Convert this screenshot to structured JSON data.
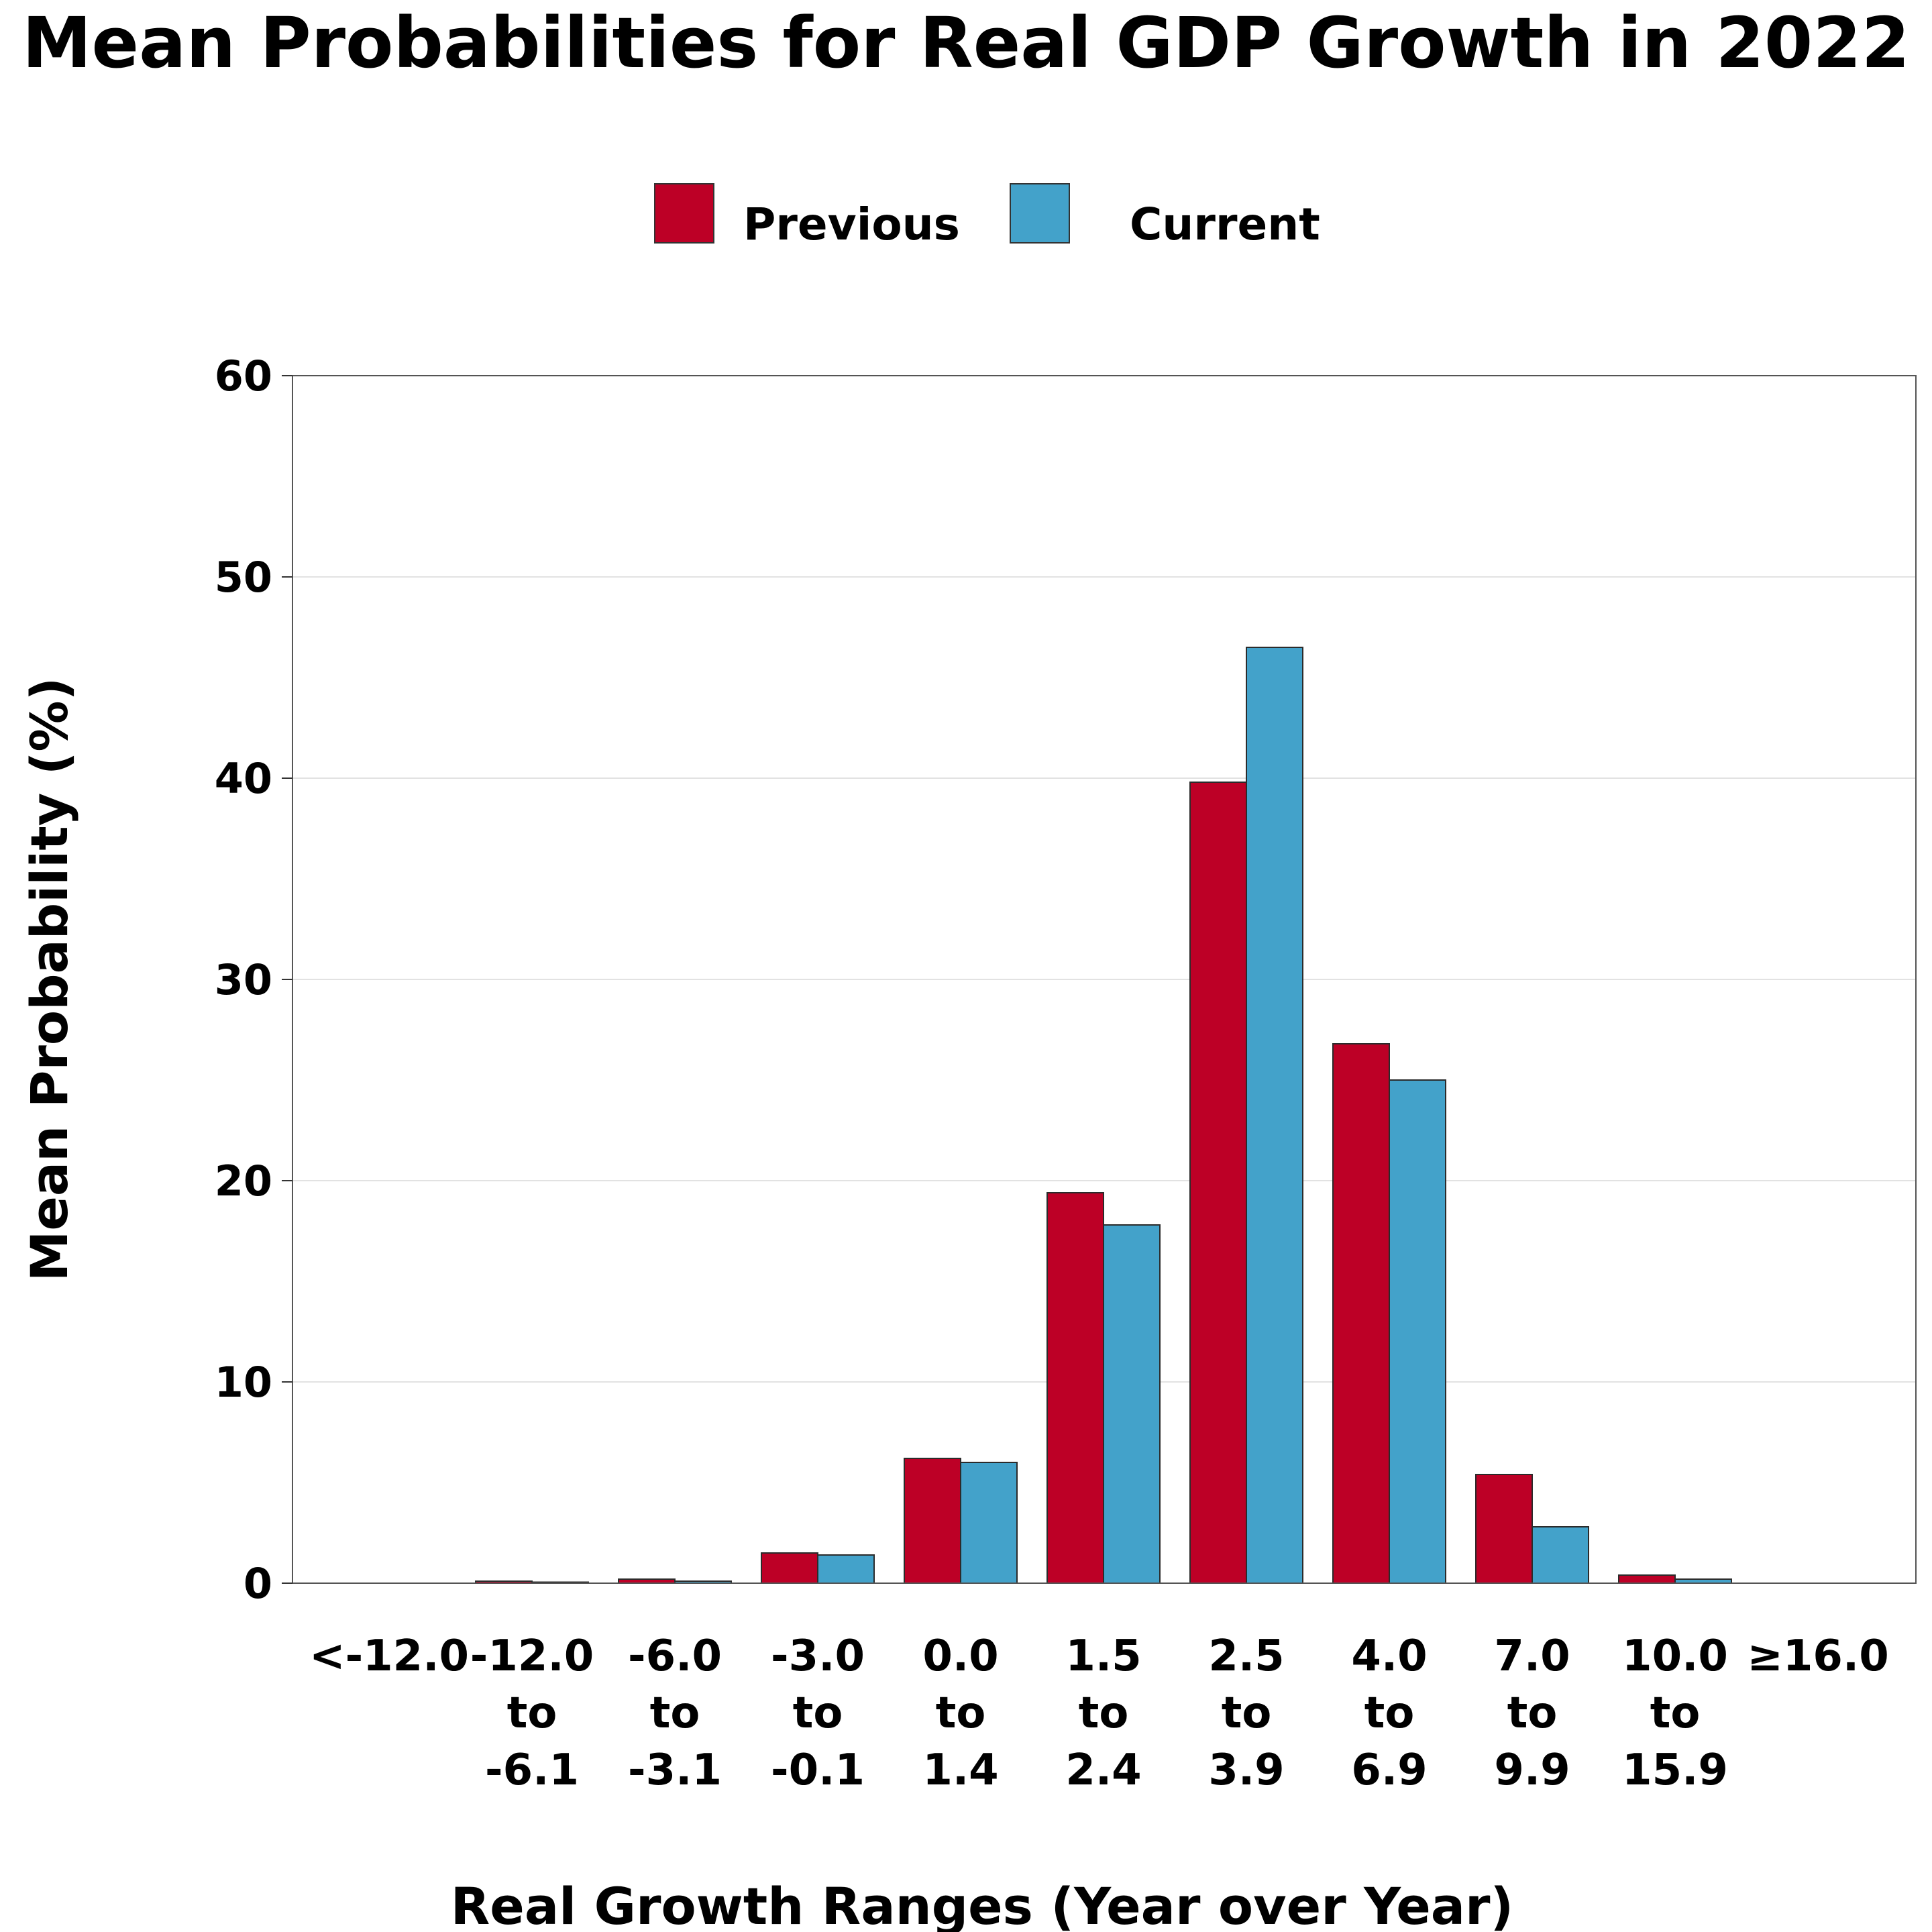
{
  "chart_data": {
    "type": "bar",
    "title": "Mean Probabilities for Real GDP Growth in 2022",
    "xlabel": "Real Growth Ranges (Year over Year)",
    "ylabel": "Mean Probability (%)",
    "ylim": [
      0,
      60
    ],
    "yticks": [
      "0",
      "10",
      "20",
      "30",
      "40",
      "50",
      "60"
    ],
    "grid": "horizontal",
    "legend_position": "top-center",
    "categories": [
      [
        "<-12.0"
      ],
      [
        "-12.0",
        "to",
        "-6.1"
      ],
      [
        "-6.0",
        "to",
        "-3.1"
      ],
      [
        "-3.0",
        "to",
        "-0.1"
      ],
      [
        "0.0",
        "to",
        "1.4"
      ],
      [
        "1.5",
        "to",
        "2.4"
      ],
      [
        "2.5",
        "to",
        "3.9"
      ],
      [
        "4.0",
        "to",
        "6.9"
      ],
      [
        "7.0",
        "to",
        "9.9"
      ],
      [
        "10.0",
        "to",
        "15.9"
      ],
      [
        "≥16.0"
      ]
    ],
    "series": [
      {
        "name": "Previous",
        "color": "#BD0026",
        "values": [
          0.0,
          0.1,
          0.2,
          1.5,
          6.2,
          19.4,
          39.8,
          26.8,
          5.4,
          0.4,
          0.0
        ]
      },
      {
        "name": "Current",
        "color": "#43A2CA",
        "values": [
          0.0,
          0.05,
          0.1,
          1.4,
          6.0,
          17.8,
          46.5,
          25.0,
          2.8,
          0.2,
          0.0
        ]
      }
    ]
  }
}
